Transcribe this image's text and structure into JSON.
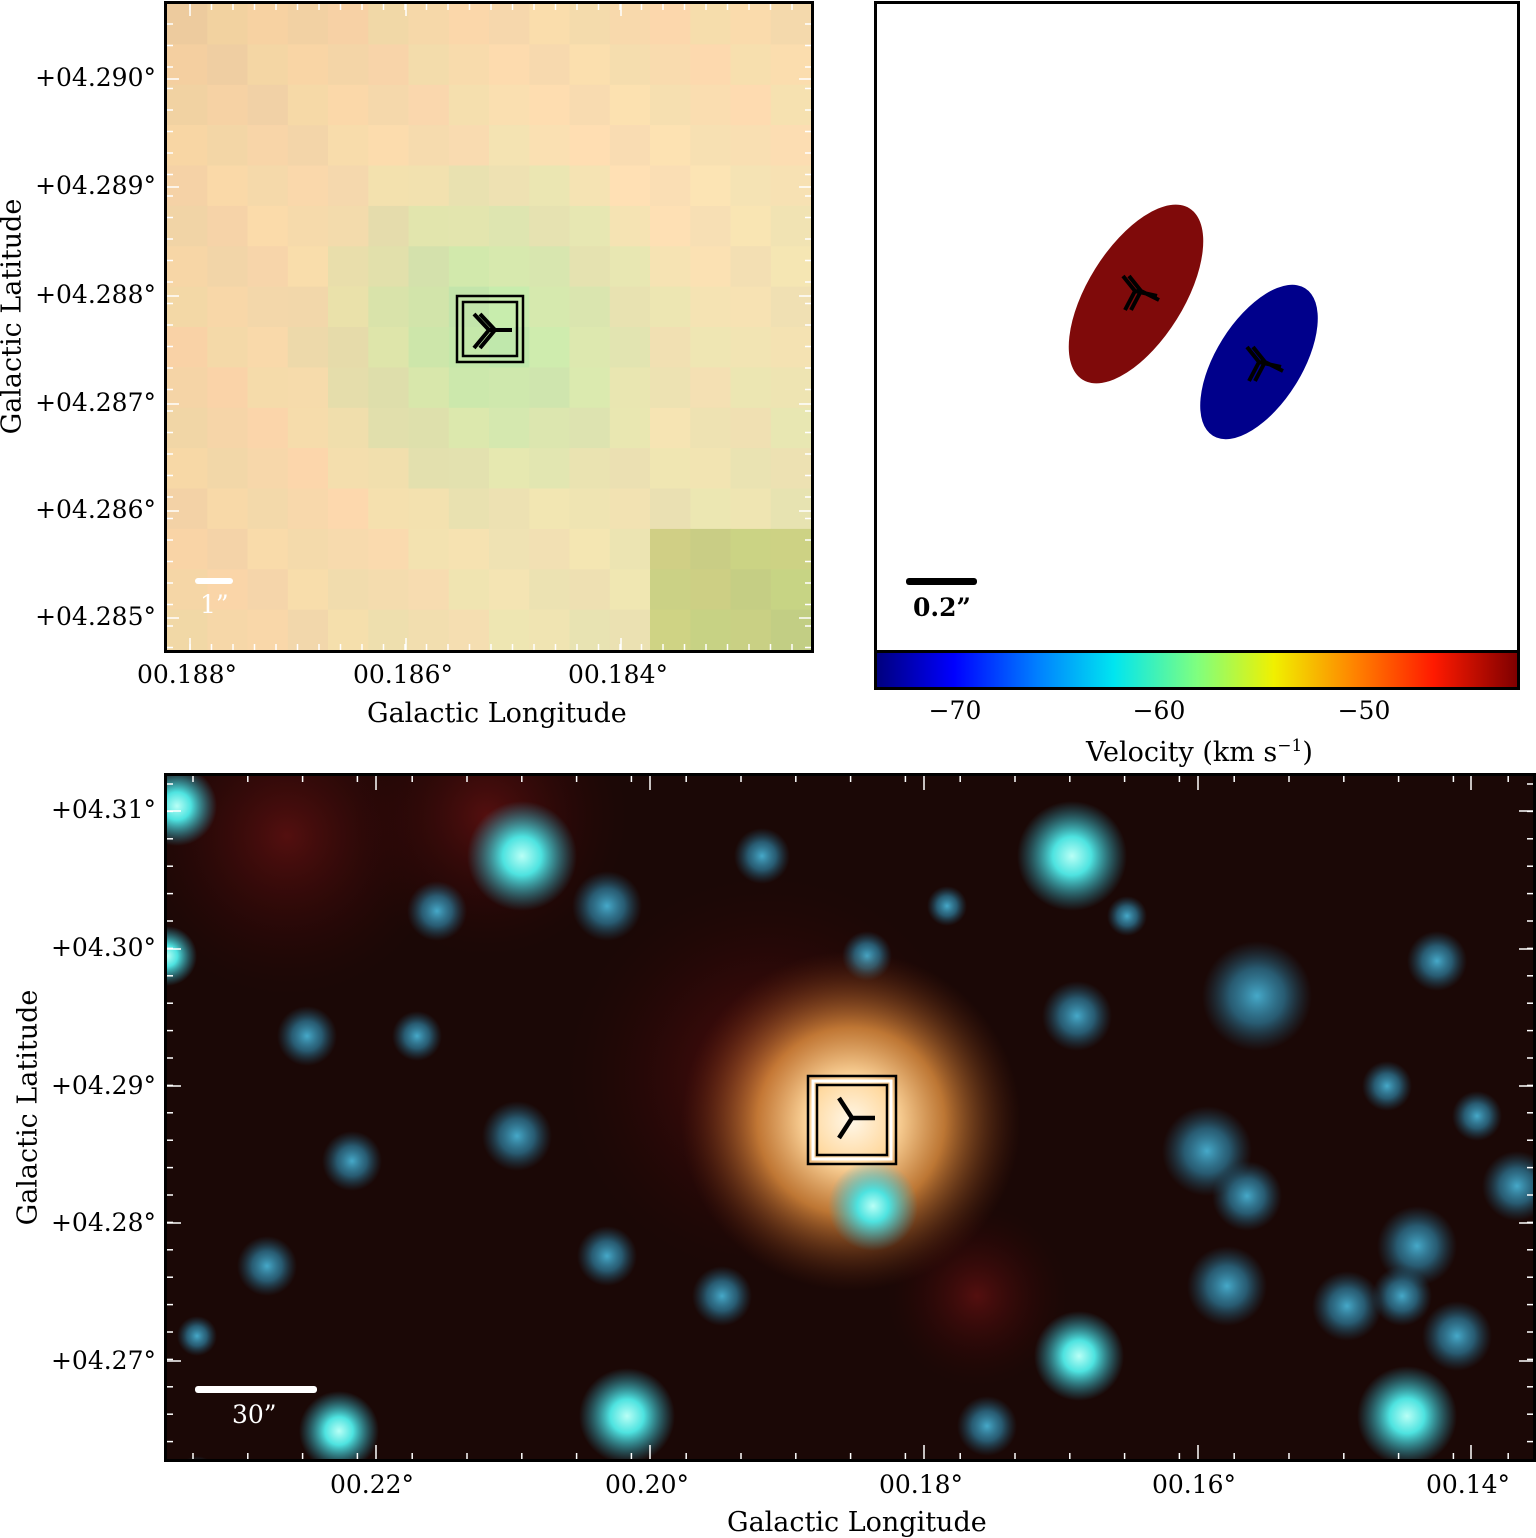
{
  "top_left": {
    "y_ticks": [
      "+04.290°",
      "+04.289°",
      "+04.288°",
      "+04.287°",
      "+04.286°",
      "+04.285°"
    ],
    "x_ticks": [
      "00.188°",
      "00.186°",
      "00.184°"
    ],
    "xlabel": "Galactic Longitude",
    "ylabel": "Galactic Latitude",
    "scalebar_label": "1”",
    "marker_icon": "three-pronged-star-marker-icon"
  },
  "top_right": {
    "scalebar_label": "0.2”",
    "ellipses": [
      {
        "color": "#7f0a0a",
        "meaning": "redshifted"
      },
      {
        "color": "#00008b",
        "meaning": "blueshifted"
      }
    ],
    "colorbar": {
      "ticks": [
        "−70",
        "−60",
        "−50"
      ],
      "label": "Velocity (km s",
      "label_sup": "−1",
      "label_close": ")"
    }
  },
  "bottom": {
    "y_ticks": [
      "+04.31°",
      "+04.30°",
      "+04.29°",
      "+04.28°",
      "+04.27°"
    ],
    "x_ticks": [
      "00.22°",
      "00.20°",
      "00.18°",
      "00.16°",
      "00.14°"
    ],
    "xlabel": "Galactic Longitude",
    "ylabel": "Galactic Latitude",
    "scalebar_label": "30”",
    "marker_icon": "three-pronged-star-marker-icon"
  }
}
